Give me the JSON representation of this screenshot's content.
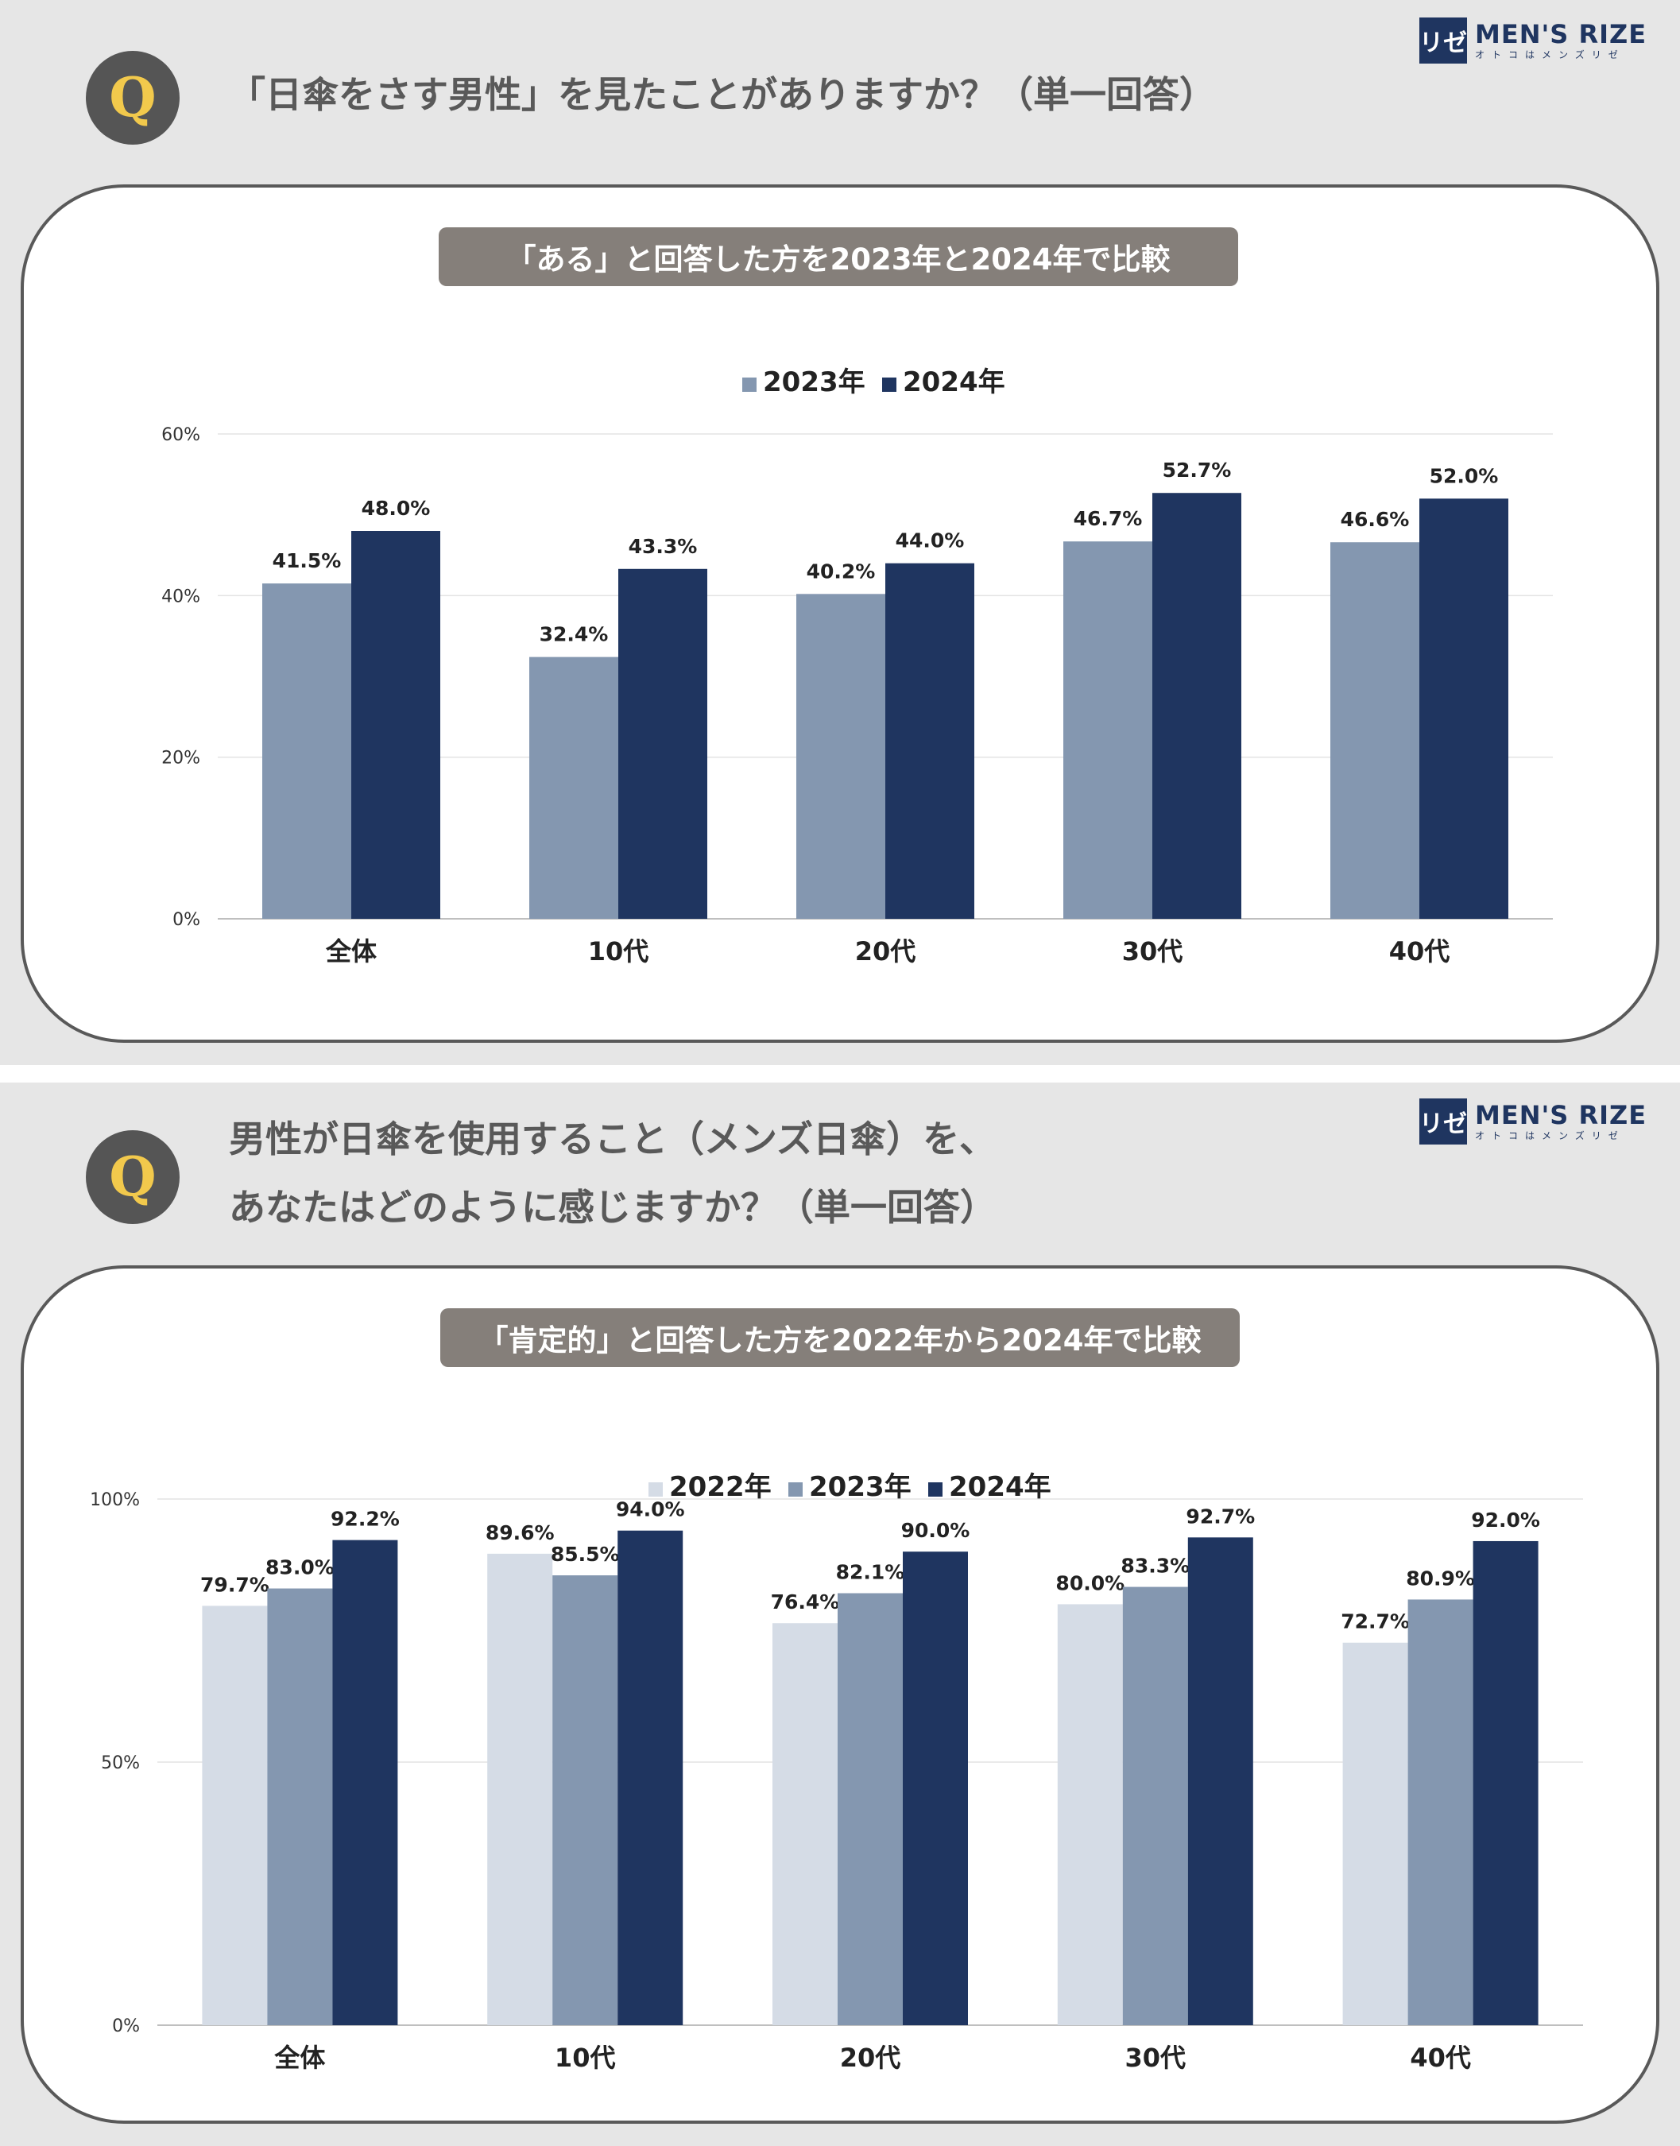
{
  "brand": {
    "logo_mark": "リゼ",
    "name": "MEN'S RIZE",
    "tagline": "オトコはメンズリゼ"
  },
  "colors": {
    "c2022": "#d5dce6",
    "c2023": "#8497b0",
    "c2024": "#1f3560",
    "gold": "#f2c94c"
  },
  "panel1": {
    "badge": "Q",
    "question": "「日傘をさす男性」を見たことがありますか？（単一回答）",
    "subtitle": "「ある」と回答した方を2023年と2024年で比較"
  },
  "panel2": {
    "badge": "Q",
    "question_line1": "男性が日傘を使用すること（メンズ日傘）を、",
    "question_line2": "あなたはどのように感じますか？（単一回答）",
    "subtitle": "「肯定的」と回答した方を2022年から2024年で比較"
  },
  "chart_data": [
    {
      "type": "bar",
      "title": "「ある」と回答した方を2023年と2024年で比較",
      "categories": [
        "全体",
        "10代",
        "20代",
        "30代",
        "40代"
      ],
      "series": [
        {
          "name": "2023年",
          "values": [
            41.5,
            32.4,
            40.2,
            46.7,
            46.6
          ],
          "labels": [
            "41.5%",
            "32.4%",
            "40.2%",
            "46.7%",
            "46.6%"
          ],
          "color": "#8497b0"
        },
        {
          "name": "2024年",
          "values": [
            48.0,
            43.3,
            44.0,
            52.7,
            52.0
          ],
          "labels": [
            "48.0%",
            "43.3%",
            "44.0%",
            "52.7%",
            "52.0%"
          ],
          "color": "#1f3560"
        }
      ],
      "ylim": [
        0,
        60
      ],
      "yticks": [
        0,
        20,
        40,
        60
      ],
      "ytick_labels": [
        "0%",
        "20%",
        "40%",
        "60%"
      ],
      "grid": true,
      "legend": "top-center"
    },
    {
      "type": "bar",
      "title": "「肯定的」と回答した方を2022年から2024年で比較",
      "categories": [
        "全体",
        "10代",
        "20代",
        "30代",
        "40代"
      ],
      "series": [
        {
          "name": "2022年",
          "values": [
            79.7,
            89.6,
            76.4,
            80.0,
            72.7
          ],
          "labels": [
            "79.7%",
            "89.6%",
            "76.4%",
            "80.0%",
            "72.7%"
          ],
          "color": "#d5dce6"
        },
        {
          "name": "2023年",
          "values": [
            83.0,
            85.5,
            82.1,
            83.3,
            80.9
          ],
          "labels": [
            "83.0%",
            "85.5%",
            "82.1%",
            "83.3%",
            "80.9%"
          ],
          "color": "#8497b0"
        },
        {
          "name": "2024年",
          "values": [
            92.2,
            94.0,
            90.0,
            92.7,
            92.0
          ],
          "labels": [
            "92.2%",
            "94.0%",
            "90.0%",
            "92.7%",
            "92.0%"
          ],
          "color": "#1f3560"
        }
      ],
      "ylim": [
        0,
        100
      ],
      "yticks": [
        0,
        50,
        100
      ],
      "ytick_labels": [
        "0%",
        "50%",
        "100%"
      ],
      "grid": true,
      "legend": "top-center"
    }
  ]
}
